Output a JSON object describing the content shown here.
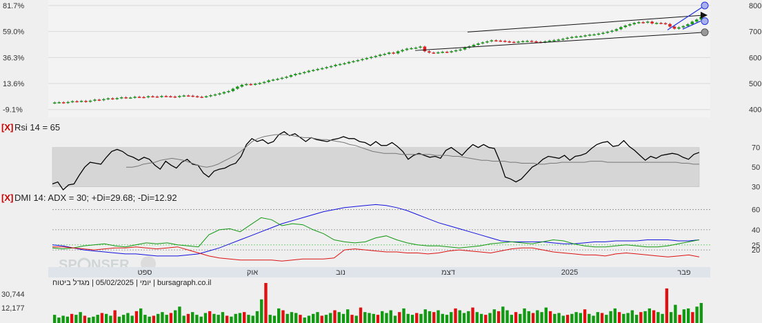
{
  "chart_data": [
    {
      "type": "candlestick",
      "name": "price",
      "left_axis_ticks": [
        "81.7%",
        "59.0%",
        "36.3%",
        "13.6%",
        "-9.1%"
      ],
      "right_axis_ticks": [
        800,
        700,
        600,
        500,
        400
      ],
      "ylim": [
        386,
        800
      ],
      "x_month_labels": [
        "ספט",
        "אוק",
        "נוב",
        "דצמ",
        "2025",
        "פבר"
      ],
      "close": [
        427,
        428,
        426,
        429,
        432,
        431,
        433,
        430,
        434,
        438,
        436,
        440,
        443,
        441,
        444,
        447,
        445,
        446,
        449,
        448,
        447,
        451,
        450,
        449,
        452,
        451,
        450,
        448,
        452,
        454,
        453,
        451,
        449,
        448,
        451,
        455,
        458,
        462,
        467,
        471,
        480,
        488,
        495,
        498,
        496,
        499,
        502,
        506,
        512,
        515,
        518,
        522,
        526,
        532,
        537,
        540,
        544,
        549,
        552,
        556,
        559,
        563,
        567,
        572,
        575,
        578,
        583,
        586,
        590,
        594,
        598,
        602,
        606,
        611,
        614,
        619,
        616,
        624,
        629,
        634,
        636,
        638,
        642,
        624,
        619,
        618,
        620,
        622,
        621,
        624,
        628,
        631,
        638,
        643,
        649,
        654,
        658,
        662,
        666,
        665,
        664,
        662,
        660,
        659,
        661,
        663,
        664,
        662,
        660,
        659,
        662,
        665,
        667,
        669,
        672,
        676,
        679,
        681,
        682,
        685,
        688,
        689,
        692,
        695,
        699,
        703,
        709,
        717,
        723,
        728,
        733,
        736,
        734,
        738,
        731,
        733,
        732,
        729,
        719,
        711,
        716,
        721,
        728,
        738,
        746,
        757
      ],
      "range_lines": [
        {
          "name": "channel-upper",
          "from": 698,
          "to": 763
        },
        {
          "name": "channel-lower",
          "from": 627,
          "to": 697
        },
        {
          "name": "trend-line",
          "from": 706,
          "to": 800
        }
      ]
    },
    {
      "type": "line",
      "name": "rsi",
      "title": "Rsi 14 = 65",
      "close_button": "[X]",
      "right_axis_ticks": [
        70,
        50,
        30
      ],
      "band": [
        30,
        70
      ],
      "ylim": [
        20,
        95
      ],
      "series": [
        {
          "name": "rsi",
          "values": [
            33,
            35,
            27,
            32,
            33,
            42,
            50,
            55,
            54,
            53,
            60,
            66,
            68,
            66,
            62,
            60,
            57,
            60,
            58,
            52,
            48,
            56,
            52,
            49,
            55,
            58,
            53,
            52,
            44,
            40,
            46,
            48,
            49,
            52,
            54,
            61,
            73,
            79,
            76,
            78,
            74,
            76,
            83,
            86,
            82,
            84,
            80,
            76,
            80,
            78,
            77,
            76,
            78,
            79,
            81,
            79,
            79,
            76,
            75,
            72,
            76,
            72,
            72,
            75,
            71,
            66,
            58,
            62,
            64,
            62,
            60,
            61,
            59,
            67,
            70,
            66,
            62,
            68,
            73,
            70,
            73,
            70,
            69,
            56,
            40,
            38,
            35,
            38,
            44,
            50,
            53,
            58,
            61,
            60,
            59,
            62,
            57,
            61,
            62,
            64,
            69,
            73,
            75,
            76,
            71,
            72,
            77,
            71,
            67,
            62,
            57,
            61,
            59,
            62,
            63,
            64,
            63,
            60,
            58,
            63,
            65
          ]
        },
        {
          "name": "rsi-average",
          "values": [
            50,
            50,
            51,
            53,
            54,
            55,
            57,
            58,
            59,
            58,
            57,
            55,
            53,
            51,
            50,
            51,
            53,
            56,
            59,
            62,
            66,
            71,
            76,
            79,
            81,
            82,
            83,
            83,
            83,
            82,
            81,
            80,
            80,
            79,
            78,
            78,
            77,
            76,
            75,
            73,
            72,
            70,
            68,
            66,
            65,
            64,
            64,
            64,
            63,
            63,
            63,
            63,
            63,
            63,
            62,
            62,
            62,
            61,
            61,
            60,
            59,
            58,
            57,
            57,
            56,
            56,
            56,
            55,
            55,
            54,
            54,
            54,
            53,
            53,
            54,
            54,
            55,
            55,
            55,
            55,
            55,
            56,
            56,
            56,
            55,
            55,
            55,
            55,
            55,
            55,
            55,
            55,
            55,
            55,
            55,
            55,
            55,
            54,
            54,
            53,
            53
          ]
        }
      ]
    },
    {
      "type": "line",
      "name": "dmi",
      "title": "DMI 14: ADX = 30; +Di=29.68; -Di=12.92",
      "close_button": "[X]",
      "right_axis_ticks": [
        60,
        40,
        25,
        20
      ],
      "ylim": [
        5,
        68
      ],
      "series": [
        {
          "name": "ADX",
          "values": [
            25,
            24,
            22,
            20,
            19,
            18,
            17,
            16,
            16,
            15,
            14,
            14,
            14,
            15,
            16,
            19,
            22,
            26,
            30,
            34,
            38,
            42,
            46,
            49,
            52,
            55,
            58,
            60,
            62,
            63,
            64,
            65,
            64,
            62,
            59,
            55,
            51,
            47,
            44,
            41,
            38,
            35,
            32,
            29,
            28,
            28,
            28,
            28,
            27,
            26,
            26,
            27,
            28,
            28,
            29,
            29,
            29,
            30,
            30,
            30,
            29,
            29,
            30
          ]
        },
        {
          "name": "+Di",
          "values": [
            22,
            21,
            22,
            24,
            25,
            26,
            24,
            23,
            25,
            27,
            26,
            27,
            25,
            24,
            23,
            35,
            40,
            41,
            38,
            45,
            52,
            50,
            44,
            46,
            45,
            40,
            36,
            30,
            28,
            27,
            28,
            32,
            34,
            30,
            27,
            25,
            24,
            24,
            23,
            22,
            23,
            24,
            26,
            27,
            28,
            27,
            26,
            28,
            30,
            29,
            26,
            24,
            23,
            23,
            24,
            25,
            24,
            23,
            23,
            24,
            26,
            28,
            30
          ]
        },
        {
          "name": "-Di",
          "values": [
            23,
            23,
            22,
            21,
            20,
            21,
            22,
            22,
            23,
            22,
            21,
            22,
            23,
            20,
            17,
            14,
            12,
            11,
            10,
            10,
            10,
            10,
            9,
            10,
            11,
            11,
            11,
            12,
            20,
            21,
            20,
            19,
            18,
            18,
            17,
            17,
            16,
            17,
            19,
            20,
            19,
            18,
            17,
            19,
            21,
            22,
            22,
            20,
            18,
            17,
            16,
            15,
            15,
            14,
            16,
            17,
            16,
            15,
            14,
            13,
            14,
            15,
            13
          ]
        }
      ]
    },
    {
      "type": "bar",
      "name": "volume",
      "title": "יומי | 05/02/2025 | מגדל ביטוח | bursagraph.co.il",
      "axis_ticks": [
        "30,744",
        "12,177"
      ],
      "values": [
        9,
        6,
        8,
        7,
        10,
        9,
        12,
        8,
        6,
        7,
        9,
        11,
        10,
        8,
        14,
        7,
        9,
        11,
        8,
        13,
        16,
        9,
        7,
        8,
        10,
        12,
        9,
        11,
        14,
        18,
        8,
        10,
        12,
        9,
        7,
        11,
        13,
        10,
        9,
        12,
        8,
        7,
        10,
        11,
        12,
        9,
        8,
        13,
        26,
        44,
        9,
        8,
        16,
        14,
        10,
        12,
        11,
        9,
        6,
        8,
        10,
        12,
        8,
        9,
        11,
        14,
        12,
        10,
        15,
        9,
        8,
        17,
        12,
        11,
        10,
        9,
        13,
        11,
        14,
        8,
        12,
        16,
        10,
        9,
        11,
        10,
        15,
        13,
        12,
        14,
        10,
        9,
        12,
        16,
        14,
        11,
        13,
        17,
        12,
        10,
        9,
        11,
        15,
        13,
        18,
        14,
        9,
        12,
        10,
        16,
        13,
        11,
        14,
        12,
        17,
        13,
        10,
        11,
        8,
        9,
        10,
        12,
        11,
        15,
        10,
        8,
        12,
        11,
        9,
        13,
        16,
        12,
        10,
        11,
        14,
        9,
        12,
        13,
        16,
        14,
        12,
        10,
        38,
        12,
        20,
        9,
        15,
        16,
        12,
        18,
        22
      ],
      "down_days": [
        4,
        7,
        11,
        14,
        19,
        23,
        27,
        31,
        36,
        40,
        44,
        49,
        53,
        57,
        62,
        65,
        69,
        71,
        75,
        80,
        84,
        88,
        93,
        97,
        100,
        103,
        107,
        111,
        115,
        119,
        123,
        127,
        131,
        136,
        139,
        142,
        145,
        148
      ]
    }
  ]
}
